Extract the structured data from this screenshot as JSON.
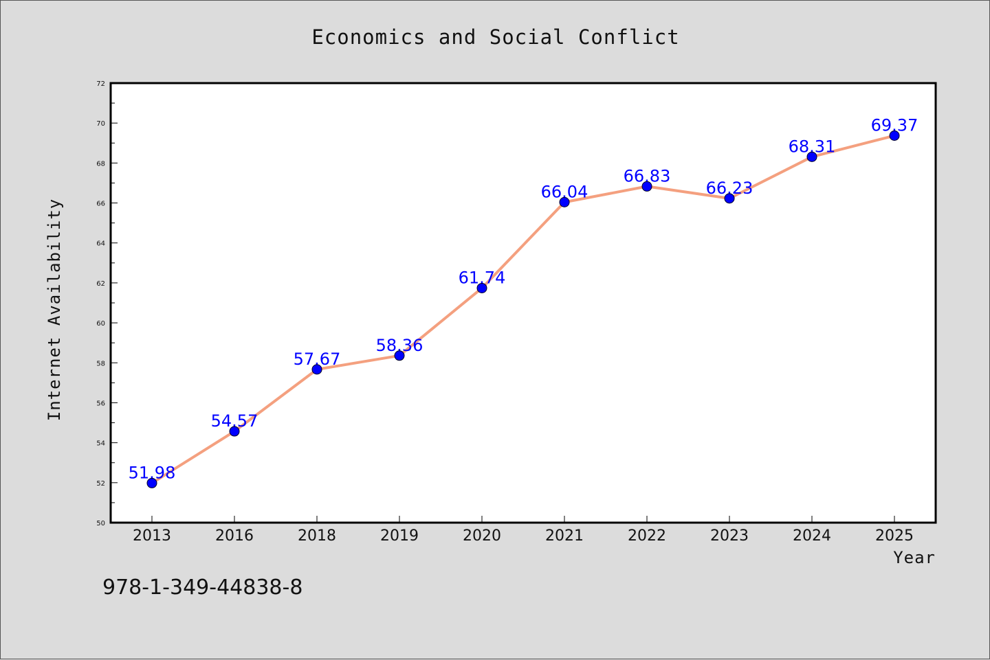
{
  "chart_data": {
    "type": "line",
    "title": "Economics and Social Conflict",
    "xlabel": "Year",
    "ylabel": "Internet Availability",
    "categories": [
      "2013",
      "2016",
      "2018",
      "2019",
      "2020",
      "2021",
      "2022",
      "2023",
      "2024",
      "2025"
    ],
    "series": [
      {
        "values": [
          51.98,
          54.57,
          57.67,
          58.36,
          61.74,
          66.04,
          66.83,
          66.23,
          68.31,
          69.37
        ],
        "line_color": "#f4a07f",
        "marker_color": "#0000ff"
      }
    ],
    "data_labels": [
      "51.98",
      "54.57",
      "57.67",
      "58.36",
      "61.74",
      "66.04",
      "66.83",
      "66.23",
      "68.31",
      "69.37"
    ],
    "ylim": [
      50,
      72
    ],
    "yticks": [
      "50",
      "52",
      "54",
      "56",
      "58",
      "60",
      "62",
      "64",
      "66",
      "68",
      "70",
      "72"
    ],
    "grid": false,
    "footer": "978-1-349-44838-8",
    "colors": {
      "background": "#dcdcdc",
      "plot_background": "#ffffff",
      "line": "#f4a07f",
      "marker": "#0000ff",
      "data_label": "#0000ff"
    }
  }
}
